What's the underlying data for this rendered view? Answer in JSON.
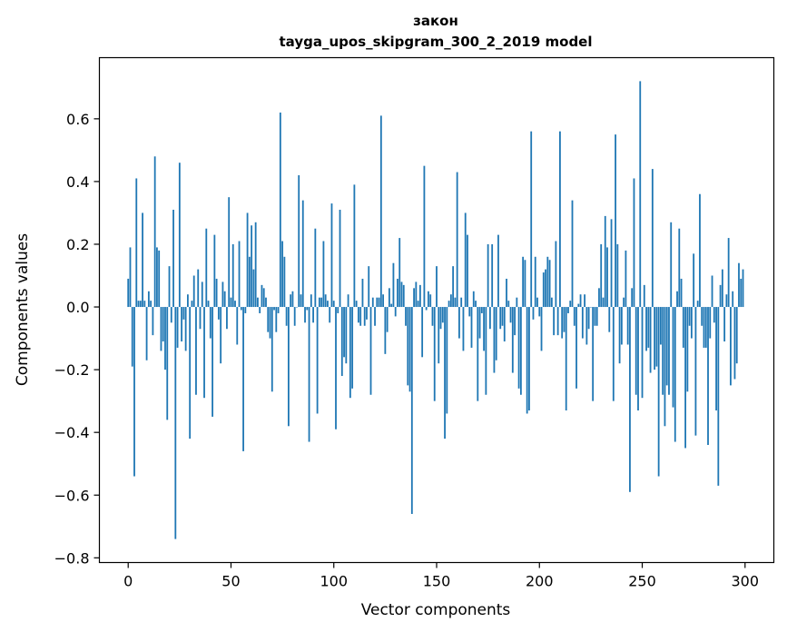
{
  "chart_data": {
    "type": "bar",
    "title": "закон",
    "subtitle": "tayga_upos_skipgram_300_2_2019 model",
    "xlabel": "Vector components",
    "ylabel": "Components values",
    "xlim": [
      -14,
      314
    ],
    "ylim": [
      -0.815,
      0.795
    ],
    "xticks": [
      0,
      50,
      100,
      150,
      200,
      250,
      300
    ],
    "yticks": [
      -0.8,
      -0.6,
      -0.4,
      -0.2,
      0.0,
      0.2,
      0.4,
      0.6
    ],
    "xtick_labels": [
      "0",
      "50",
      "100",
      "150",
      "200",
      "250",
      "300"
    ],
    "ytick_labels": [
      "−0.8",
      "−0.6",
      "−0.4",
      "−0.2",
      "0.0",
      "0.2",
      "0.4",
      "0.6"
    ],
    "grid": false,
    "bar_color": "#1f77b4",
    "values": [
      0.09,
      0.19,
      -0.19,
      -0.54,
      0.41,
      0.02,
      0.02,
      0.3,
      0.02,
      -0.17,
      0.05,
      0.02,
      -0.09,
      0.48,
      0.19,
      0.18,
      -0.14,
      -0.11,
      -0.2,
      -0.36,
      0.13,
      -0.05,
      0.31,
      -0.74,
      -0.13,
      0.46,
      -0.11,
      -0.04,
      -0.14,
      0.04,
      -0.42,
      0.02,
      0.1,
      -0.28,
      0.12,
      -0.07,
      0.08,
      -0.29,
      0.25,
      0.02,
      -0.1,
      -0.35,
      0.23,
      0.09,
      -0.04,
      -0.18,
      0.08,
      0.05,
      -0.07,
      0.35,
      0.03,
      0.2,
      0.02,
      -0.12,
      0.21,
      -0.01,
      -0.46,
      -0.02,
      0.3,
      0.16,
      0.26,
      0.12,
      0.27,
      0.03,
      -0.02,
      0.07,
      0.06,
      0.03,
      -0.08,
      -0.1,
      -0.27,
      -0.01,
      -0.08,
      -0.02,
      0.62,
      0.21,
      0.16,
      -0.06,
      -0.38,
      0.04,
      0.05,
      -0.06,
      0.0,
      0.42,
      0.04,
      0.34,
      -0.05,
      -0.01,
      -0.43,
      0.04,
      -0.05,
      0.25,
      -0.34,
      0.03,
      0.03,
      0.21,
      0.04,
      0.02,
      -0.05,
      0.33,
      0.02,
      -0.39,
      -0.02,
      0.31,
      -0.22,
      -0.16,
      -0.18,
      0.04,
      -0.29,
      -0.26,
      0.39,
      0.02,
      -0.05,
      -0.06,
      0.09,
      -0.06,
      -0.04,
      0.13,
      -0.28,
      0.03,
      -0.06,
      0.03,
      0.03,
      0.61,
      0.04,
      -0.15,
      -0.08,
      0.06,
      0.01,
      0.14,
      -0.03,
      0.09,
      0.22,
      0.08,
      0.07,
      -0.06,
      -0.25,
      -0.27,
      -0.66,
      0.06,
      0.08,
      0.02,
      0.07,
      -0.16,
      0.45,
      -0.01,
      0.05,
      0.04,
      -0.06,
      -0.3,
      0.13,
      -0.18,
      -0.07,
      -0.05,
      -0.42,
      -0.34,
      0.02,
      0.04,
      0.13,
      0.03,
      0.43,
      -0.1,
      0.03,
      -0.14,
      0.3,
      0.23,
      -0.03,
      -0.13,
      0.05,
      0.02,
      -0.3,
      -0.1,
      -0.02,
      -0.14,
      -0.28,
      0.2,
      -0.07,
      0.2,
      -0.21,
      -0.17,
      0.23,
      -0.07,
      -0.06,
      -0.11,
      0.09,
      0.02,
      -0.05,
      -0.21,
      -0.09,
      0.03,
      -0.26,
      -0.28,
      0.16,
      0.15,
      -0.34,
      -0.33,
      0.56,
      -0.04,
      0.16,
      0.03,
      -0.03,
      -0.14,
      0.11,
      0.12,
      0.16,
      0.15,
      0.03,
      -0.09,
      0.21,
      -0.09,
      0.56,
      -0.1,
      -0.08,
      -0.33,
      -0.02,
      0.02,
      0.34,
      -0.06,
      -0.26,
      0.01,
      0.04,
      -0.1,
      0.04,
      -0.12,
      -0.07,
      0.0,
      -0.3,
      -0.06,
      -0.06,
      0.06,
      0.2,
      0.03,
      0.29,
      0.19,
      -0.08,
      0.28,
      -0.3,
      0.55,
      0.2,
      -0.18,
      -0.12,
      0.03,
      0.18,
      -0.12,
      -0.59,
      0.06,
      0.41,
      -0.28,
      -0.33,
      0.72,
      -0.29,
      0.07,
      -0.14,
      -0.13,
      -0.21,
      0.44,
      -0.2,
      -0.19,
      -0.54,
      -0.12,
      -0.28,
      -0.38,
      -0.25,
      -0.28,
      0.27,
      -0.32,
      -0.43,
      0.05,
      0.25,
      0.09,
      -0.13,
      -0.45,
      -0.27,
      -0.06,
      -0.1,
      0.17,
      -0.41,
      0.02,
      0.36,
      -0.06,
      -0.13,
      -0.13,
      -0.44,
      -0.1,
      0.1,
      -0.05,
      -0.33,
      -0.57,
      0.07,
      0.12,
      -0.11,
      0.04,
      0.22,
      -0.25,
      0.05,
      -0.23,
      -0.18,
      0.14,
      0.09,
      0.12
    ]
  }
}
